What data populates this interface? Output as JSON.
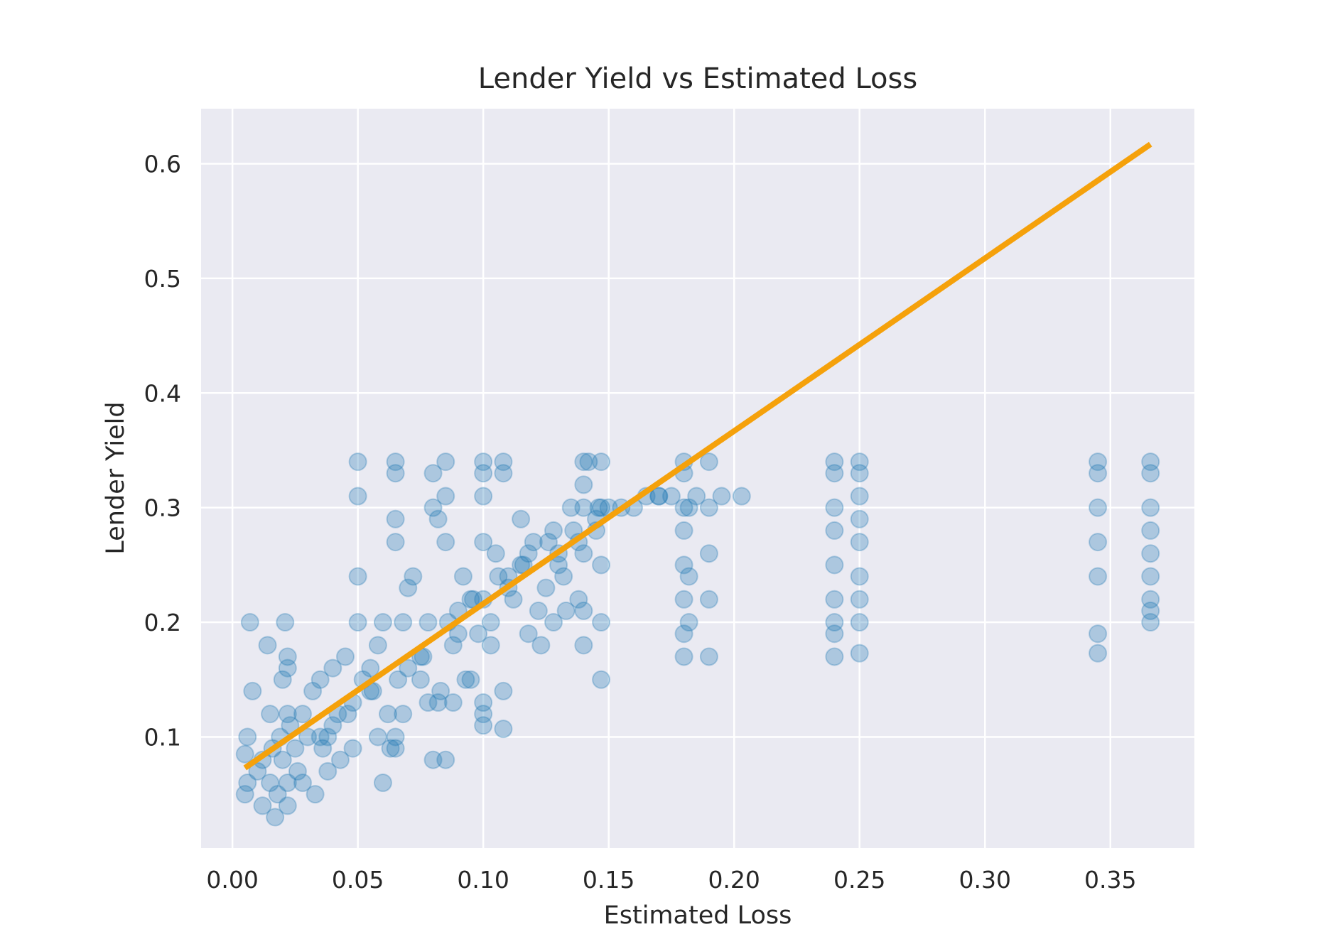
{
  "chart_data": {
    "type": "scatter",
    "title": "Lender Yield vs Estimated Loss",
    "xlabel": "Estimated Loss",
    "ylabel": "Lender Yield",
    "xlim": [
      -0.0125,
      0.3835
    ],
    "ylim": [
      0.003,
      0.648
    ],
    "xticks": [
      0.0,
      0.05,
      0.1,
      0.15,
      0.2,
      0.25,
      0.3,
      0.35
    ],
    "xtick_labels": [
      "0.00",
      "0.05",
      "0.10",
      "0.15",
      "0.20",
      "0.25",
      "0.30",
      "0.35"
    ],
    "yticks": [
      0.1,
      0.2,
      0.3,
      0.4,
      0.5,
      0.6
    ],
    "ytick_labels": [
      "0.1",
      "0.2",
      "0.3",
      "0.4",
      "0.5",
      "0.6"
    ],
    "grid": true,
    "point_color": "#1f77b4",
    "line_color": "#f5a10b",
    "background_color": "#eaeaf2",
    "series": [
      {
        "kind": "points",
        "x": [
          0.005,
          0.005,
          0.006,
          0.006,
          0.007,
          0.008,
          0.01,
          0.012,
          0.014,
          0.015,
          0.016,
          0.017,
          0.019,
          0.02,
          0.021,
          0.022,
          0.022,
          0.022,
          0.022,
          0.022,
          0.023,
          0.025,
          0.028,
          0.03,
          0.032,
          0.035,
          0.038,
          0.04,
          0.042,
          0.045,
          0.048,
          0.05,
          0.05,
          0.05,
          0.05,
          0.052,
          0.055,
          0.058,
          0.06,
          0.06,
          0.062,
          0.065,
          0.065,
          0.065,
          0.065,
          0.065,
          0.065,
          0.068,
          0.07,
          0.072,
          0.075,
          0.078,
          0.08,
          0.08,
          0.08,
          0.082,
          0.082,
          0.085,
          0.085,
          0.085,
          0.085,
          0.088,
          0.09,
          0.092,
          0.095,
          0.098,
          0.1,
          0.1,
          0.1,
          0.1,
          0.1,
          0.1,
          0.1,
          0.1,
          0.103,
          0.105,
          0.108,
          0.108,
          0.108,
          0.108,
          0.11,
          0.112,
          0.115,
          0.118,
          0.12,
          0.122,
          0.125,
          0.128,
          0.13,
          0.132,
          0.135,
          0.138,
          0.14,
          0.14,
          0.14,
          0.14,
          0.14,
          0.14,
          0.142,
          0.145,
          0.147,
          0.147,
          0.147,
          0.147,
          0.147,
          0.15,
          0.155,
          0.16,
          0.165,
          0.17,
          0.175,
          0.18,
          0.18,
          0.18,
          0.18,
          0.18,
          0.18,
          0.18,
          0.18,
          0.182,
          0.182,
          0.182,
          0.185,
          0.19,
          0.19,
          0.19,
          0.19,
          0.19,
          0.195,
          0.203,
          0.24,
          0.24,
          0.24,
          0.24,
          0.24,
          0.24,
          0.24,
          0.24,
          0.24,
          0.25,
          0.25,
          0.25,
          0.25,
          0.25,
          0.25,
          0.25,
          0.25,
          0.25,
          0.345,
          0.345,
          0.345,
          0.345,
          0.345,
          0.345,
          0.345,
          0.366,
          0.366,
          0.366,
          0.366,
          0.366,
          0.366,
          0.366,
          0.366,
          0.366,
          0.028,
          0.033,
          0.038,
          0.043,
          0.048,
          0.058,
          0.063,
          0.068,
          0.078,
          0.083,
          0.088,
          0.093,
          0.103,
          0.118,
          0.123,
          0.128,
          0.133,
          0.012,
          0.018,
          0.026,
          0.036,
          0.046,
          0.056,
          0.066,
          0.076,
          0.086,
          0.096,
          0.106,
          0.116,
          0.126,
          0.136,
          0.146,
          0.015,
          0.02,
          0.035,
          0.04,
          0.055,
          0.07,
          0.075,
          0.09,
          0.095,
          0.11,
          0.115,
          0.13,
          0.138,
          0.145,
          0.17
        ],
        "y": [
          0.05,
          0.085,
          0.06,
          0.1,
          0.2,
          0.14,
          0.07,
          0.08,
          0.18,
          0.12,
          0.09,
          0.03,
          0.1,
          0.15,
          0.2,
          0.16,
          0.17,
          0.12,
          0.06,
          0.04,
          0.11,
          0.09,
          0.12,
          0.1,
          0.14,
          0.15,
          0.1,
          0.16,
          0.12,
          0.17,
          0.13,
          0.34,
          0.31,
          0.24,
          0.2,
          0.15,
          0.16,
          0.18,
          0.2,
          0.06,
          0.12,
          0.34,
          0.33,
          0.29,
          0.27,
          0.1,
          0.09,
          0.2,
          0.23,
          0.24,
          0.15,
          0.2,
          0.3,
          0.33,
          0.08,
          0.29,
          0.13,
          0.34,
          0.31,
          0.27,
          0.08,
          0.18,
          0.21,
          0.24,
          0.15,
          0.19,
          0.34,
          0.33,
          0.31,
          0.27,
          0.22,
          0.12,
          0.11,
          0.13,
          0.2,
          0.26,
          0.34,
          0.33,
          0.14,
          0.107,
          0.24,
          0.22,
          0.29,
          0.26,
          0.27,
          0.21,
          0.23,
          0.28,
          0.25,
          0.24,
          0.3,
          0.22,
          0.34,
          0.32,
          0.3,
          0.26,
          0.21,
          0.18,
          0.34,
          0.28,
          0.34,
          0.3,
          0.25,
          0.2,
          0.15,
          0.3,
          0.3,
          0.3,
          0.31,
          0.31,
          0.31,
          0.34,
          0.33,
          0.3,
          0.28,
          0.25,
          0.22,
          0.19,
          0.17,
          0.3,
          0.24,
          0.2,
          0.31,
          0.34,
          0.3,
          0.26,
          0.22,
          0.17,
          0.31,
          0.31,
          0.34,
          0.33,
          0.3,
          0.28,
          0.25,
          0.22,
          0.2,
          0.19,
          0.17,
          0.34,
          0.33,
          0.31,
          0.29,
          0.27,
          0.24,
          0.22,
          0.2,
          0.173,
          0.34,
          0.33,
          0.3,
          0.27,
          0.24,
          0.19,
          0.173,
          0.34,
          0.33,
          0.3,
          0.28,
          0.26,
          0.24,
          0.22,
          0.2,
          0.21,
          0.06,
          0.05,
          0.07,
          0.08,
          0.09,
          0.1,
          0.09,
          0.12,
          0.13,
          0.14,
          0.13,
          0.15,
          0.18,
          0.19,
          0.18,
          0.2,
          0.21,
          0.04,
          0.05,
          0.07,
          0.09,
          0.12,
          0.14,
          0.15,
          0.17,
          0.2,
          0.22,
          0.24,
          0.25,
          0.27,
          0.28,
          0.3,
          0.06,
          0.08,
          0.1,
          0.11,
          0.14,
          0.16,
          0.17,
          0.19,
          0.22,
          0.23,
          0.25,
          0.26,
          0.27,
          0.29,
          0.31
        ]
      },
      {
        "kind": "fit_line",
        "x": [
          0.005,
          0.366
        ],
        "y": [
          0.073,
          0.617
        ]
      }
    ]
  }
}
